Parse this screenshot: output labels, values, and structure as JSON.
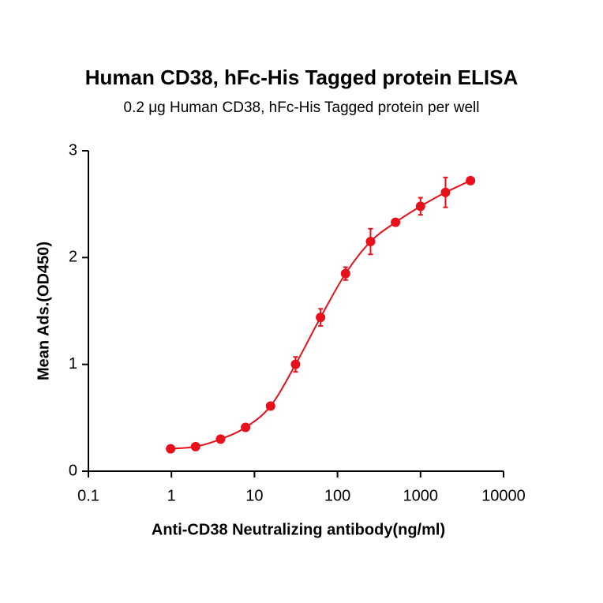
{
  "chart_data": {
    "type": "scatter",
    "title": "Human CD38, hFc-His Tagged protein ELISA",
    "subtitle": "0.2 μg Human CD38, hFc-His Tagged protein per well",
    "x_label": "Anti-CD38 Neutralizing antibody(ng/ml)",
    "y_label": "Mean Ads.(OD450)",
    "x": [
      0.977,
      1.953,
      3.906,
      7.8125,
      15.625,
      31.25,
      62.5,
      125,
      250,
      500,
      1000,
      2000,
      4000
    ],
    "values": [
      0.21,
      0.23,
      0.3,
      0.41,
      0.61,
      1.0,
      1.44,
      1.85,
      2.15,
      2.33,
      2.48,
      2.61,
      2.72
    ],
    "errors": [
      0.02,
      0.02,
      0.02,
      0.02,
      0.02,
      0.07,
      0.08,
      0.06,
      0.12,
      0.02,
      0.08,
      0.14,
      0.02
    ],
    "color": "#e8101a",
    "xscale": "log",
    "xlim": [
      0.1,
      10000
    ],
    "xticks": [
      0.1,
      1,
      10,
      100,
      1000,
      10000
    ],
    "ylim": [
      0,
      3
    ],
    "yticks": [
      0,
      1,
      2,
      3
    ]
  }
}
